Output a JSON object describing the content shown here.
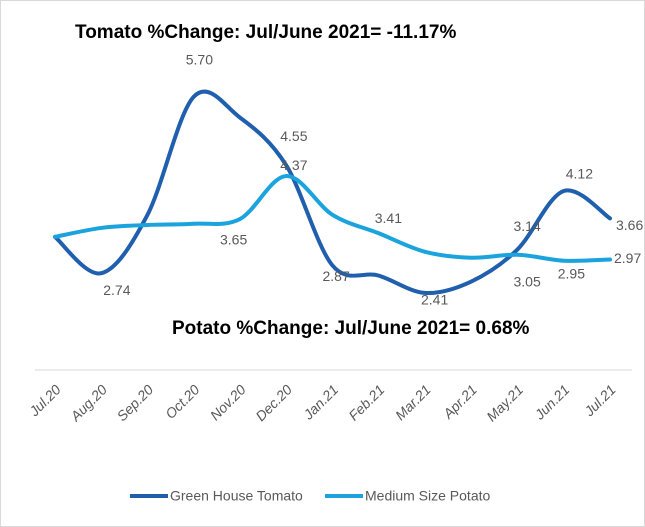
{
  "chart_data": {
    "type": "line",
    "annotations": [
      "Tomato %Change: Jul/June 2021= -11.17%",
      "Potato %Change: Jul/June 2021= 0.68%"
    ],
    "categories": [
      "Jul.20",
      "Aug.20",
      "Sep.20",
      "Oct.20",
      "Nov.20",
      "Dec.20",
      "Jan.21",
      "Feb.21",
      "Mar.21",
      "Apr.21",
      "May.21",
      "Jun.21",
      "Jul.21"
    ],
    "series": [
      {
        "name": "Green House Tomato",
        "color": "#1f5fad",
        "values": [
          3.35,
          2.74,
          3.72,
          5.7,
          5.35,
          4.55,
          2.87,
          2.7,
          2.41,
          2.6,
          3.14,
          4.12,
          3.66
        ],
        "value_labels": [
          null,
          "2.74",
          null,
          "5.70",
          null,
          "4.55",
          "2.87",
          null,
          "2.41",
          null,
          "3.14",
          "4.12",
          "3.66"
        ]
      },
      {
        "name": "Medium Size Potato",
        "color": "#1aa3dc",
        "values": [
          3.35,
          3.5,
          3.55,
          3.57,
          3.65,
          4.37,
          3.72,
          3.41,
          3.1,
          3.0,
          3.05,
          2.95,
          2.97
        ],
        "value_labels": [
          null,
          null,
          null,
          null,
          "3.65",
          "4.37",
          null,
          "3.41",
          null,
          null,
          "3.05",
          "2.95",
          "2.97"
        ]
      }
    ],
    "ylim": [
      1.1,
      6.3
    ],
    "legend": "bottom"
  }
}
